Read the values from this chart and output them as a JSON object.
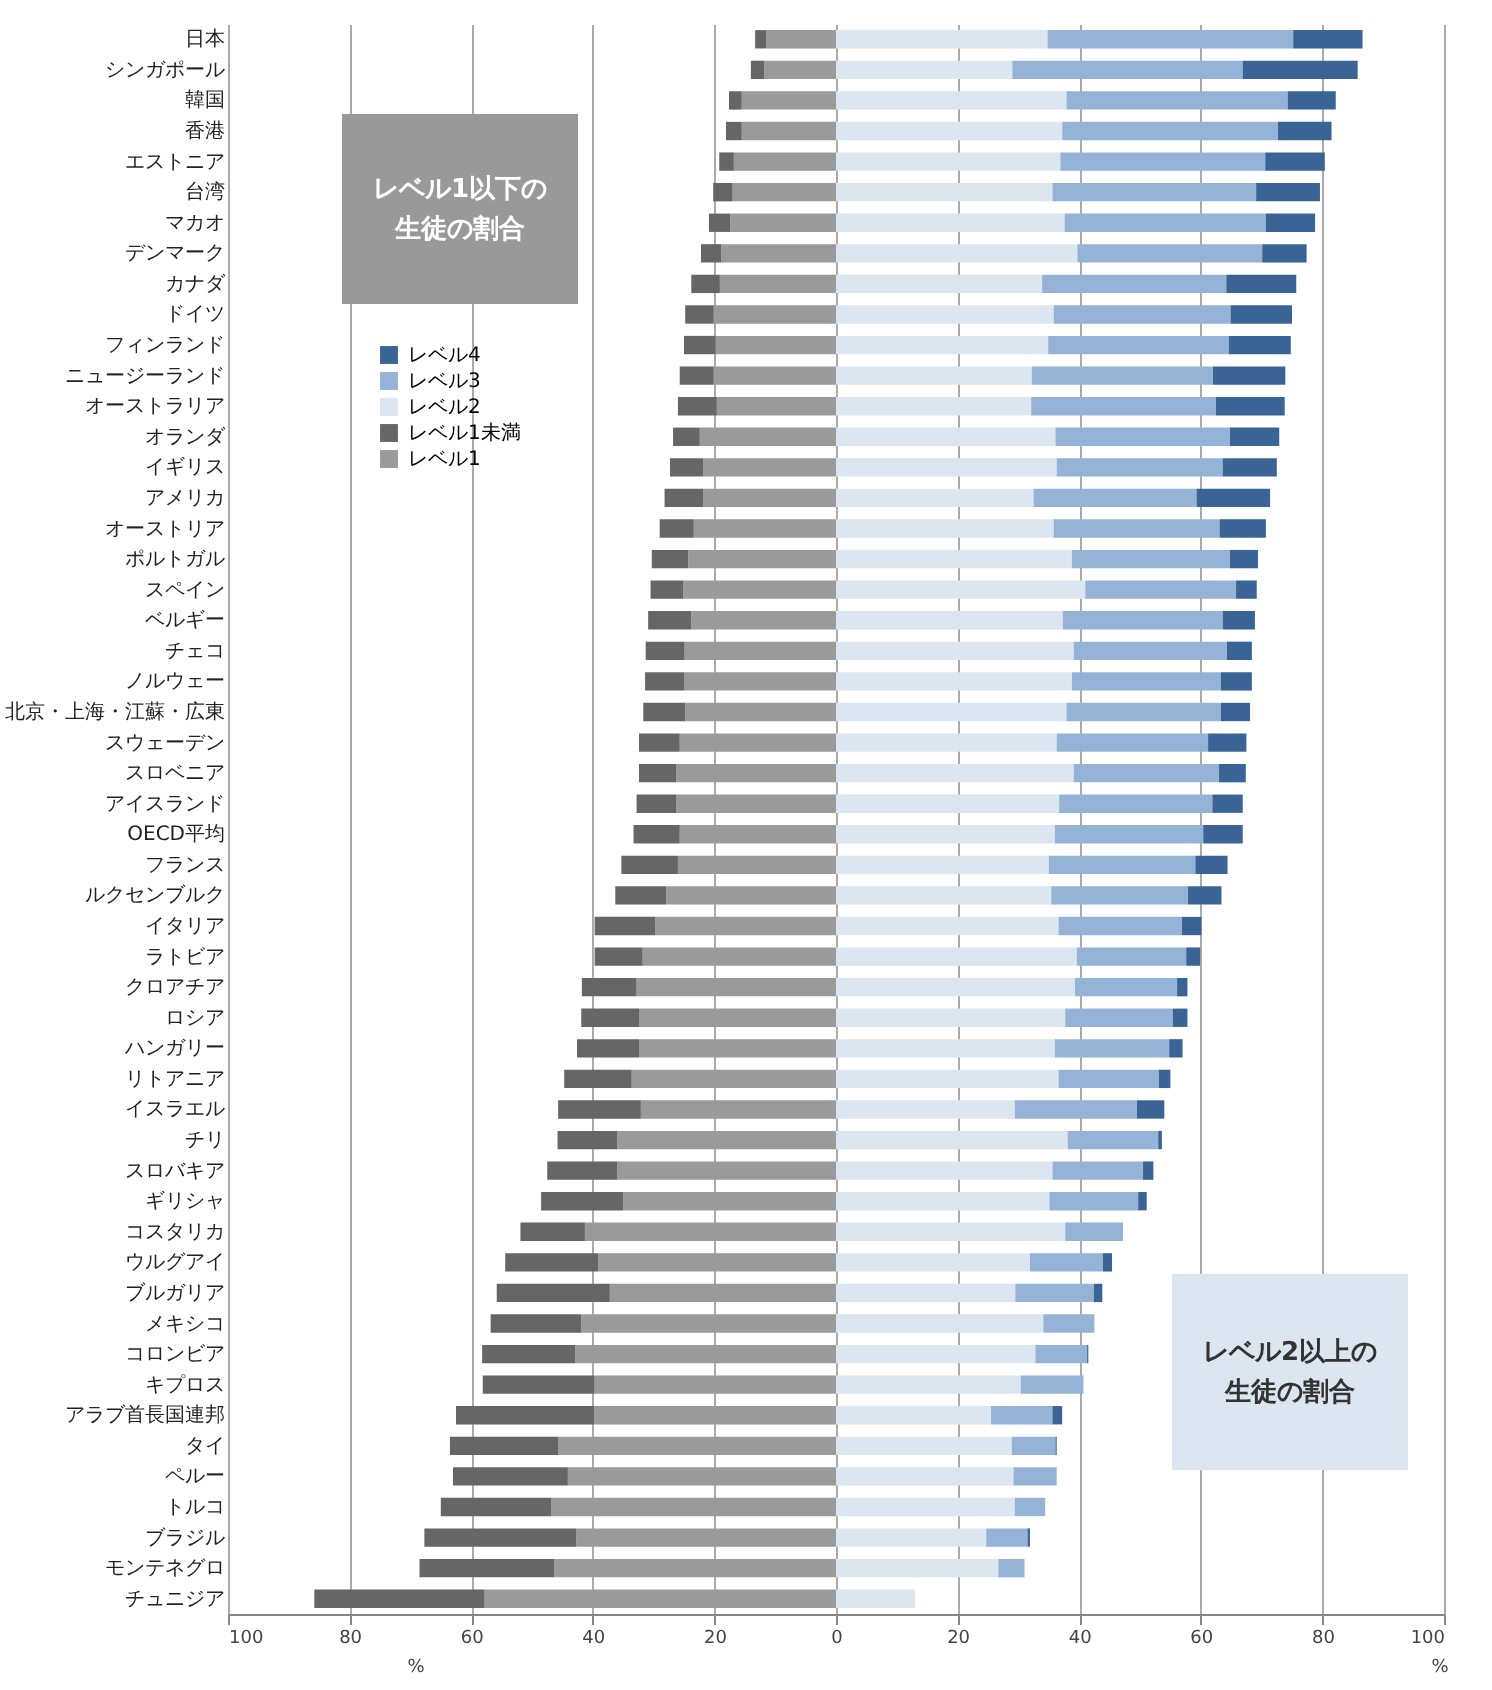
{
  "chart_data": {
    "type": "bar",
    "orientation": "horizontal",
    "stacked": true,
    "xlabel": "%",
    "categories": [
      "日本",
      "シンガポール",
      "韓国",
      "香港",
      "エストニア",
      "台湾",
      "マカオ",
      "デンマーク",
      "カナダ",
      "ドイツ",
      "フィンランド",
      "ニュージーランド",
      "オーストラリア",
      "オランダ",
      "イギリス",
      "アメリカ",
      "オーストリア",
      "ポルトガル",
      "スペイン",
      "ベルギー",
      "チェコ",
      "ノルウェー",
      "北京・上海・江蘇・広東",
      "スウェーデン",
      "スロベニア",
      "アイスランド",
      "OECD平均",
      "フランス",
      "ルクセンブルク",
      "イタリア",
      "ラトビア",
      "クロアチア",
      "ロシア",
      "ハンガリー",
      "リトアニア",
      "イスラエル",
      "チリ",
      "スロバキア",
      "ギリシャ",
      "コスタリカ",
      "ウルグアイ",
      "ブルガリア",
      "メキシコ",
      "コロンビア",
      "キプロス",
      "アラブ首長国連邦",
      "タイ",
      "ペルー",
      "トルコ",
      "ブラジル",
      "モンテネグロ",
      "チュニジア"
    ],
    "series": [
      {
        "name": "レベル1",
        "color": "#9a9a9a",
        "values": [
          -11.5,
          -11.8,
          -15.5,
          -15.5,
          -16.8,
          -17.0,
          -17.4,
          -18.9,
          -19.1,
          -20.1,
          -19.8,
          -20.1,
          -19.6,
          -22.4,
          -21.8,
          -21.8,
          -23.4,
          -24.3,
          -25.1,
          -23.8,
          -24.9,
          -25.0,
          -24.8,
          -25.7,
          -26.3,
          -26.3,
          -25.7,
          -26.0,
          -27.9,
          -29.7,
          -31.8,
          -32.8,
          -32.4,
          -32.4,
          -33.6,
          -32.1,
          -36.0,
          -36.0,
          -35.0,
          -41.3,
          -39.1,
          -37.2,
          -41.9,
          -42.9,
          -39.7,
          -39.8,
          -45.7,
          -44.1,
          -46.8,
          -42.7,
          -46.3,
          -57.8
        ]
      },
      {
        "name": "レベル1未満",
        "color": "#666666",
        "values": [
          -1.8,
          -2.2,
          -2.1,
          -2.6,
          -2.4,
          -3.2,
          -3.5,
          -3.3,
          -4.7,
          -4.7,
          -5.2,
          -5.6,
          -6.4,
          -4.4,
          -5.5,
          -6.4,
          -5.6,
          -6.0,
          -5.4,
          -7.1,
          -6.4,
          -6.4,
          -6.9,
          -6.7,
          -6.1,
          -6.5,
          -7.6,
          -9.3,
          -8.4,
          -10.0,
          -7.9,
          -9.0,
          -9.5,
          -10.2,
          -11.1,
          -13.6,
          -9.8,
          -11.5,
          -13.5,
          -10.6,
          -15.3,
          -18.6,
          -14.9,
          -15.3,
          -18.4,
          -22.7,
          -17.8,
          -18.9,
          -18.2,
          -25.0,
          -22.2,
          -28.0
        ]
      },
      {
        "name": "レベル2",
        "color": "#dce6f1",
        "values": [
          34.8,
          29.0,
          37.9,
          37.2,
          36.9,
          35.6,
          37.6,
          39.7,
          33.9,
          35.8,
          34.9,
          32.2,
          32.1,
          36.1,
          36.3,
          32.5,
          35.8,
          38.8,
          41.0,
          37.3,
          39.1,
          38.8,
          37.9,
          36.3,
          39.1,
          36.7,
          36.0,
          35.0,
          35.4,
          36.6,
          39.6,
          39.3,
          37.7,
          36.0,
          36.6,
          29.4,
          38.1,
          35.6,
          35.1,
          37.7,
          31.9,
          29.5,
          34.1,
          32.8,
          30.4,
          25.5,
          28.9,
          29.2,
          29.4,
          24.7,
          26.7,
          13.0
        ]
      },
      {
        "name": "レベル3",
        "color": "#95b3d7",
        "values": [
          40.4,
          37.9,
          36.4,
          35.5,
          33.7,
          33.5,
          33.1,
          30.4,
          30.3,
          29.1,
          29.7,
          29.8,
          30.4,
          28.7,
          27.3,
          26.8,
          27.3,
          26.0,
          24.8,
          26.3,
          25.2,
          24.5,
          25.4,
          24.9,
          23.9,
          25.2,
          24.4,
          24.1,
          22.5,
          20.3,
          18.0,
          16.8,
          17.7,
          18.8,
          16.5,
          20.1,
          14.9,
          14.9,
          14.6,
          9.5,
          12.0,
          12.9,
          8.4,
          8.5,
          10.3,
          10.1,
          7.2,
          7.1,
          5.0,
          6.8,
          4.3,
          0
        ]
      },
      {
        "name": "レベル4",
        "color": "#3a6496",
        "values": [
          11.4,
          18.9,
          7.9,
          8.8,
          9.8,
          10.5,
          8.1,
          7.3,
          11.5,
          10.1,
          10.2,
          11.9,
          11.3,
          8.1,
          8.9,
          12.1,
          7.6,
          4.6,
          3.4,
          5.3,
          4.1,
          5.1,
          4.8,
          6.3,
          4.4,
          5.0,
          6.5,
          5.3,
          5.5,
          3.2,
          2.3,
          1.7,
          2.4,
          2.2,
          1.9,
          4.5,
          0.6,
          1.7,
          1.4,
          0,
          1.5,
          1.4,
          0,
          0.2,
          0,
          1.6,
          0.2,
          0,
          0,
          0.4,
          0,
          0
        ]
      }
    ],
    "xlim": [
      -100,
      100
    ],
    "xticks": [
      {
        "value": -100,
        "label": "100"
      },
      {
        "value": -80,
        "label": "80"
      },
      {
        "value": -60,
        "label": "60"
      },
      {
        "value": -40,
        "label": "40"
      },
      {
        "value": -20,
        "label": "20"
      },
      0,
      20,
      40,
      60,
      80,
      100
    ],
    "grid": "x",
    "legend": "top left",
    "annotations": [
      "レベル1以下の",
      "生徒の割合",
      "レベル2以上の",
      "生徒の割合"
    ]
  }
}
